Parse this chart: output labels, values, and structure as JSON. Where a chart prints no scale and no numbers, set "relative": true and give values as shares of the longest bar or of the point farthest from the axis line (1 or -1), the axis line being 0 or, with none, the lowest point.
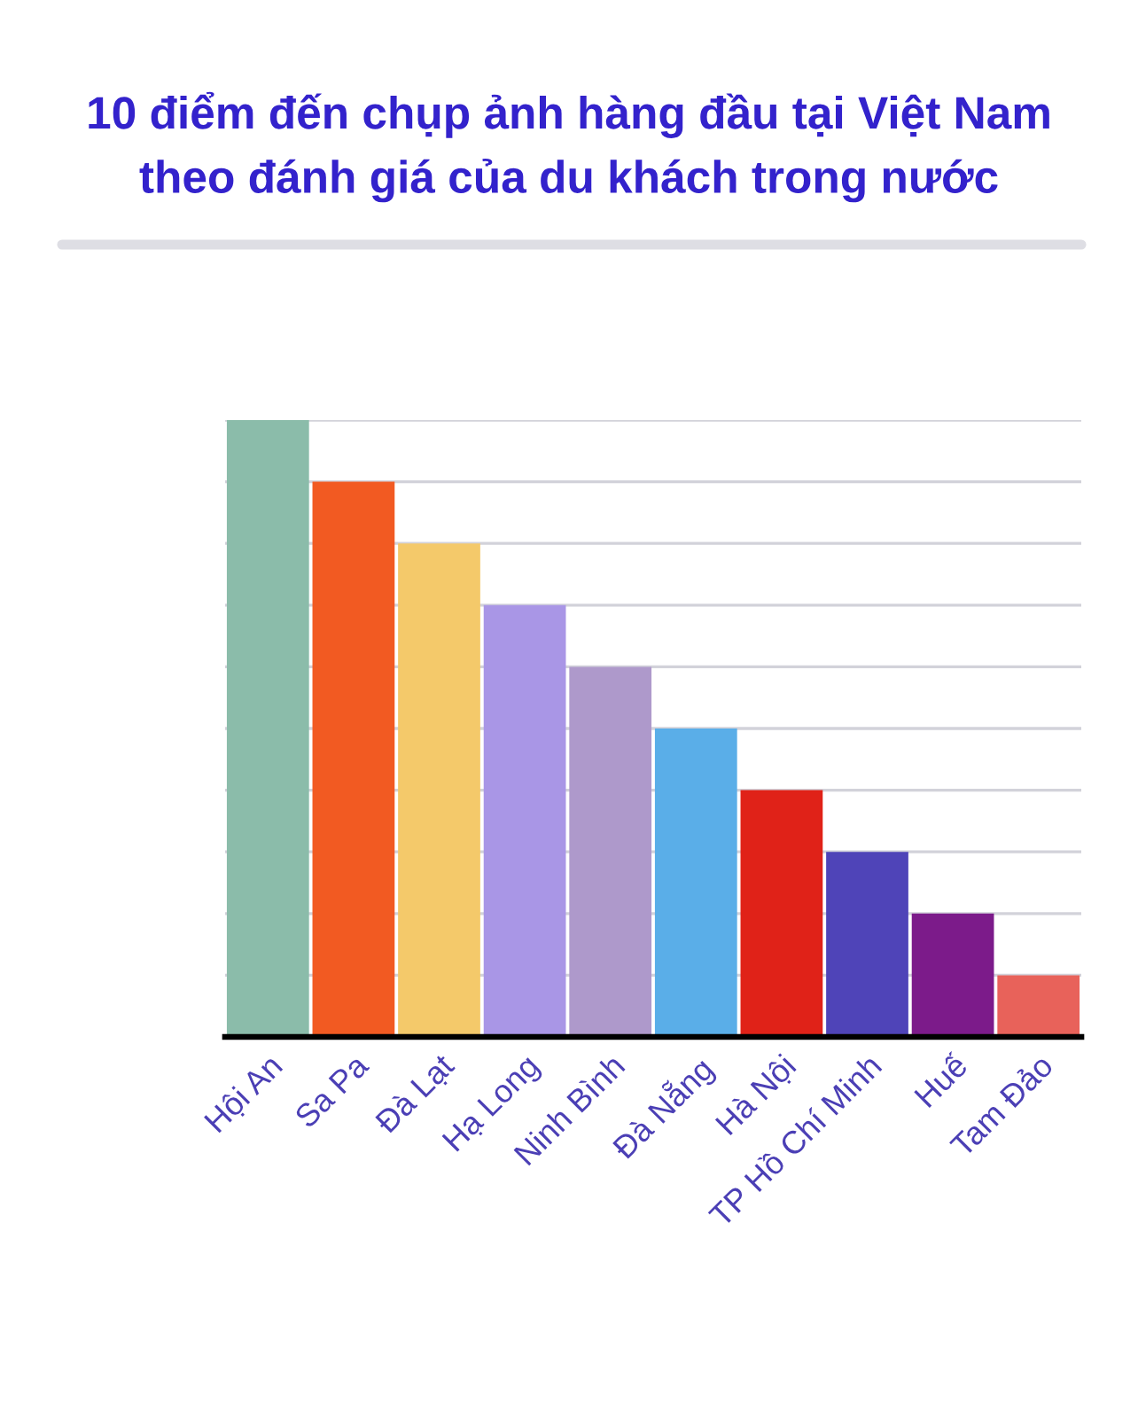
{
  "chart_data": {
    "type": "bar",
    "title": "10 điểm đến chụp ảnh hàng đầu tại Việt Nam\ntheo đánh giá của du khách trong nước",
    "categories": [
      "Hội An",
      "Sa Pa",
      "Đà Lạt",
      "Hạ Long",
      "Ninh Bình",
      "Đà Nẵng",
      "Hà Nội",
      "TP Hồ Chí Minh",
      "Huế",
      "Tam Đảo"
    ],
    "values": [
      1,
      0.9,
      0.8,
      0.7,
      0.6,
      0.5,
      0.4,
      0.3,
      0.2,
      0.1
    ],
    "colors": [
      "#8bbcaa",
      "#f25a22",
      "#f4c96a",
      "#a996e6",
      "#ae99cb",
      "#5aaee8",
      "#e02218",
      "#4f44b8",
      "#7c1b8a",
      "#e8625a"
    ],
    "relative": true,
    "grid": "y"
  }
}
